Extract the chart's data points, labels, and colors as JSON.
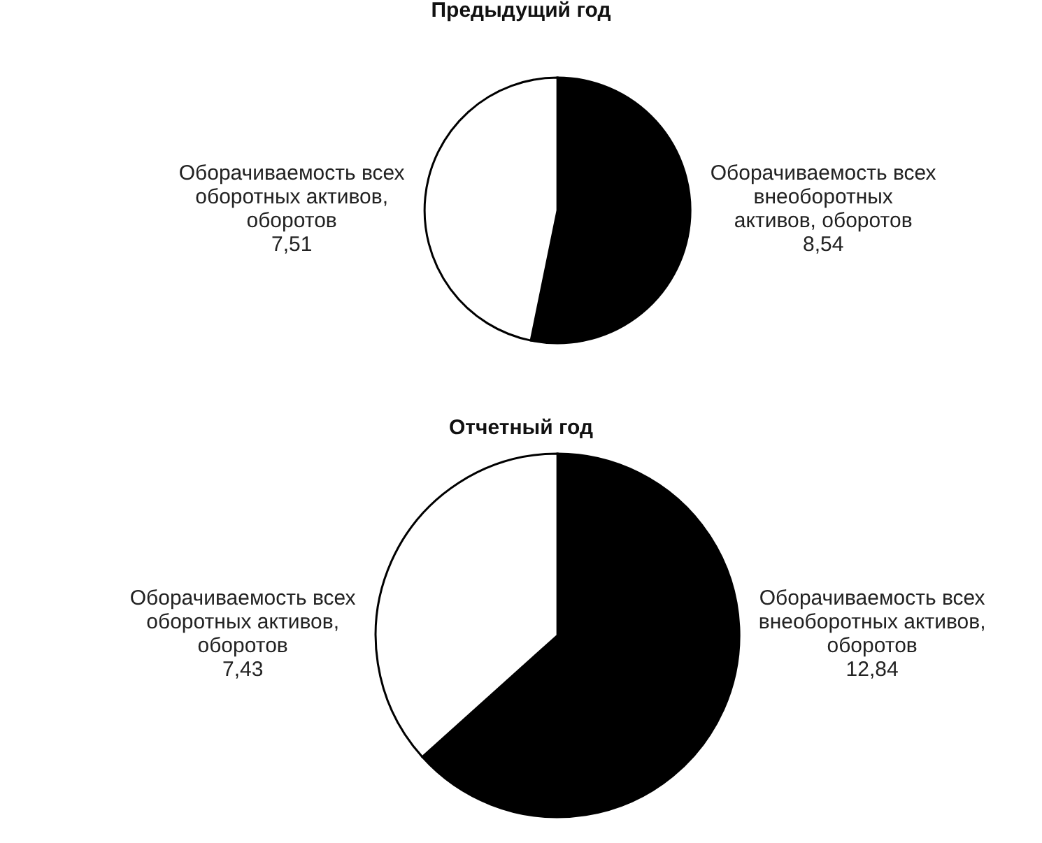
{
  "chart_data": [
    {
      "type": "pie",
      "title": "Предыдущий год",
      "categories": [
        "Оборачиваемость всех внеоборотных активов, оборотов",
        "Оборачиваемость всех оборотных активов, оборотов"
      ],
      "values": [
        8.54,
        7.51
      ],
      "value_labels": [
        "8,54",
        "7,51"
      ],
      "colors": [
        "#000000",
        "#ffffff"
      ]
    },
    {
      "type": "pie",
      "title": "Отчетный год",
      "categories": [
        "Оборачиваемость всех внеоборотных активов, оборотов",
        "Оборачиваемость всех оборотных активов, оборотов"
      ],
      "values": [
        12.84,
        7.43
      ],
      "value_labels": [
        "12,84",
        "7,43"
      ],
      "colors": [
        "#000000",
        "#ffffff"
      ]
    }
  ]
}
